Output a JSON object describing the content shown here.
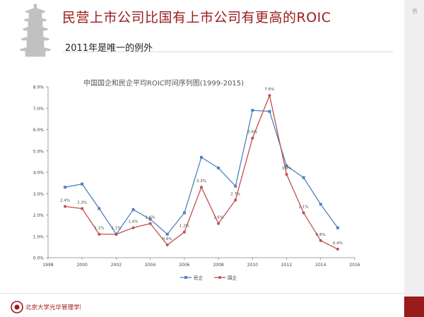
{
  "slide": {
    "title": "民营上市公司比国有上市公司有更高的ROIC",
    "subtitle": "2011年是唯一的例外",
    "side_text": "西",
    "logo_text": "北京大学光华管理学院",
    "logo_sub": ""
  },
  "colors": {
    "private": "#4f81bd",
    "state": "#c0504d",
    "title": "#9b1b1b"
  },
  "chart_data": {
    "type": "line",
    "title": "中国国企和民企平均ROIC时间序列图(1999-2015)",
    "xlabel": "",
    "ylabel": "",
    "xlim": [
      1998,
      2016
    ],
    "ylim": [
      0,
      0.08
    ],
    "x_ticks": [
      "1998",
      "2000",
      "2002",
      "2004",
      "2006",
      "2008",
      "2010",
      "2012",
      "2014",
      "2016"
    ],
    "y_ticks": [
      "0.0%",
      "1.0%",
      "2.0%",
      "3.0%",
      "4.0%",
      "5.0%",
      "6.0%",
      "7.0%",
      "8.0%"
    ],
    "legend_position": "bottom",
    "grid": false,
    "x": [
      1999,
      2000,
      2001,
      2002,
      2003,
      2004,
      2005,
      2006,
      2007,
      2008,
      2009,
      2010,
      2011,
      2012,
      2013,
      2014,
      2015
    ],
    "series": [
      {
        "name": "民企",
        "values": [
          0.033,
          0.0345,
          0.023,
          0.011,
          0.0225,
          0.018,
          0.011,
          0.021,
          0.047,
          0.042,
          0.0335,
          0.069,
          0.0685,
          0.043,
          0.0375,
          0.025,
          0.014
        ]
      },
      {
        "name": "国企",
        "values": [
          0.024,
          0.023,
          0.011,
          0.011,
          0.014,
          0.016,
          0.006,
          0.012,
          0.033,
          0.016,
          0.027,
          0.056,
          0.076,
          0.039,
          0.021,
          0.008,
          0.004
        ]
      }
    ],
    "data_labels": [
      {
        "x": 1999,
        "text": "2.4%"
      },
      {
        "x": 2000,
        "text": "2.3%"
      },
      {
        "x": 2001,
        "text": "1.1%"
      },
      {
        "x": 2002,
        "text": "1.1%"
      },
      {
        "x": 2003,
        "text": "1.4%"
      },
      {
        "x": 2004,
        "text": "1.6%"
      },
      {
        "x": 2005,
        "text": "0.6%"
      },
      {
        "x": 2006,
        "text": "1.2%"
      },
      {
        "x": 2007,
        "text": "3.3%"
      },
      {
        "x": 2008,
        "text": "1.6%"
      },
      {
        "x": 2009,
        "text": "2.7%"
      },
      {
        "x": 2010,
        "text": "5.6%"
      },
      {
        "x": 2011,
        "text": "7.6%"
      },
      {
        "x": 2012,
        "text": "3.9%"
      },
      {
        "x": 2013,
        "text": "2.1%"
      },
      {
        "x": 2014,
        "text": "0.8%"
      },
      {
        "x": 2015,
        "text": "0.4%"
      }
    ]
  }
}
